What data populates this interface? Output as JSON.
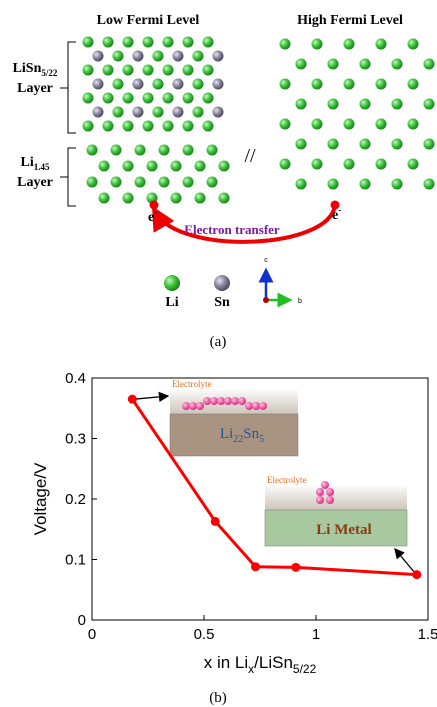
{
  "figure": {
    "panel_a": {
      "left_title": "Low Fermi Level",
      "right_title": "High Fermi Level",
      "upper_layer_label": [
        "LiSn",
        "5/22"
      ],
      "upper_layer_word": "Layer",
      "lower_layer_label": [
        "Li",
        "1.45"
      ],
      "lower_layer_word": "Layer",
      "separator": "//",
      "electron_left": [
        "e",
        "-"
      ],
      "electron_right": [
        "e",
        "-"
      ],
      "transfer_label": "Electron transfer",
      "legend": [
        "Li",
        "Sn"
      ],
      "axis_c": "c",
      "axis_b": "b",
      "caption": "(a)"
    },
    "caption_b": "(b)"
  },
  "chart_data": {
    "type": "line",
    "xlabel": [
      "x in Li",
      "x",
      "/LiSn",
      "5/22"
    ],
    "ylabel": "Voltage/V",
    "x": [
      0.18,
      0.55,
      0.73,
      0.91,
      1.45
    ],
    "values": [
      0.365,
      0.163,
      0.088,
      0.087,
      0.075
    ],
    "color": "#ff0000",
    "xlim": [
      0,
      1.5
    ],
    "xticks": [
      0,
      0.5,
      1,
      1.5
    ],
    "ylim": [
      0,
      0.4
    ],
    "yticks": [
      0,
      0.1,
      0.2,
      0.3,
      0.4
    ],
    "insets": [
      {
        "label": "Electrolyte",
        "material": [
          "Li",
          "22",
          "Sn",
          "5"
        ]
      },
      {
        "label": "Electrolyte",
        "material": [
          "Li Metal"
        ]
      }
    ]
  }
}
